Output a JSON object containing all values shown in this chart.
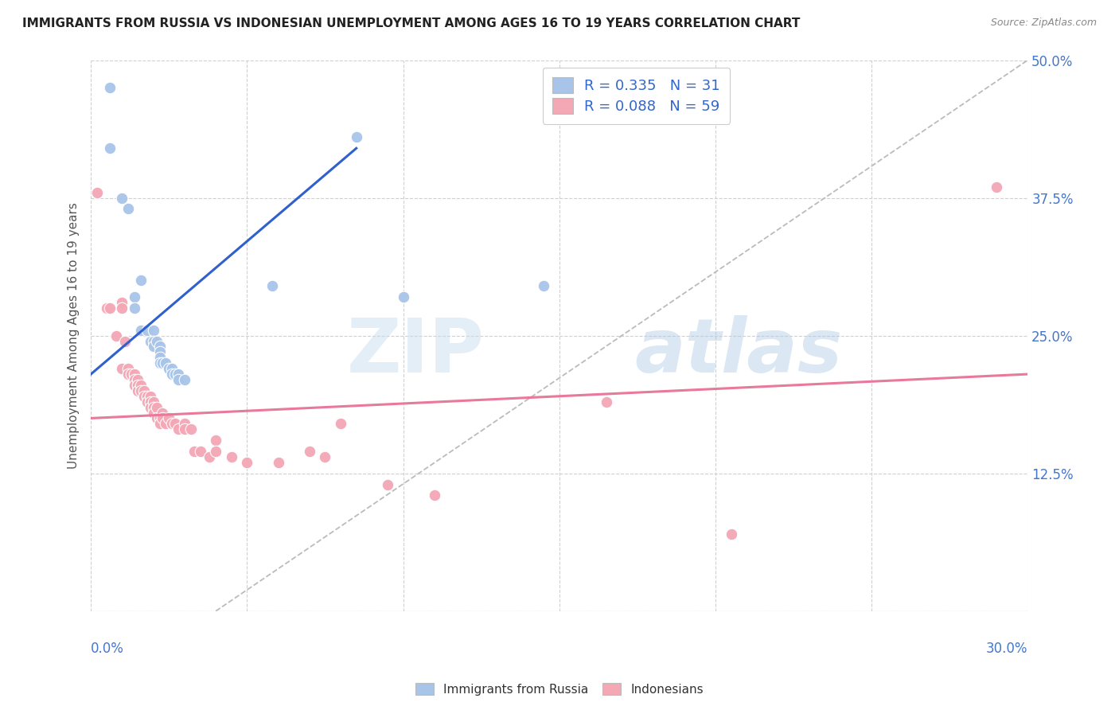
{
  "title": "IMMIGRANTS FROM RUSSIA VS INDONESIAN UNEMPLOYMENT AMONG AGES 16 TO 19 YEARS CORRELATION CHART",
  "source": "Source: ZipAtlas.com",
  "ylabel": "Unemployment Among Ages 16 to 19 years",
  "xlim": [
    0.0,
    0.3
  ],
  "ylim": [
    0.0,
    0.5
  ],
  "y_axis_ticks": [
    0.0,
    0.125,
    0.25,
    0.375,
    0.5
  ],
  "y_axis_labels": [
    "",
    "12.5%",
    "25.0%",
    "37.5%",
    "50.0%"
  ],
  "x_axis_ticks": [
    0.0,
    0.05,
    0.1,
    0.15,
    0.2,
    0.25,
    0.3
  ],
  "russia_R": 0.335,
  "russia_N": 31,
  "indonesia_R": 0.088,
  "indonesia_N": 59,
  "russia_color": "#a8c4e8",
  "indonesia_color": "#f4a7b5",
  "russia_line_color": "#3060cc",
  "indonesia_line_color": "#e8799a",
  "dashed_line_color": "#bbbbbb",
  "legend_color": "#3366cc",
  "russia_scatter": [
    [
      0.006,
      0.475
    ],
    [
      0.006,
      0.42
    ],
    [
      0.01,
      0.375
    ],
    [
      0.012,
      0.365
    ],
    [
      0.014,
      0.285
    ],
    [
      0.014,
      0.275
    ],
    [
      0.016,
      0.3
    ],
    [
      0.016,
      0.255
    ],
    [
      0.018,
      0.255
    ],
    [
      0.019,
      0.245
    ],
    [
      0.02,
      0.255
    ],
    [
      0.02,
      0.245
    ],
    [
      0.02,
      0.24
    ],
    [
      0.021,
      0.245
    ],
    [
      0.022,
      0.24
    ],
    [
      0.022,
      0.235
    ],
    [
      0.022,
      0.23
    ],
    [
      0.022,
      0.225
    ],
    [
      0.023,
      0.225
    ],
    [
      0.024,
      0.225
    ],
    [
      0.025,
      0.22
    ],
    [
      0.026,
      0.22
    ],
    [
      0.026,
      0.215
    ],
    [
      0.027,
      0.215
    ],
    [
      0.028,
      0.215
    ],
    [
      0.028,
      0.21
    ],
    [
      0.03,
      0.21
    ],
    [
      0.058,
      0.295
    ],
    [
      0.085,
      0.43
    ],
    [
      0.1,
      0.285
    ],
    [
      0.145,
      0.295
    ]
  ],
  "indonesia_scatter": [
    [
      0.002,
      0.38
    ],
    [
      0.005,
      0.275
    ],
    [
      0.006,
      0.275
    ],
    [
      0.008,
      0.25
    ],
    [
      0.01,
      0.28
    ],
    [
      0.01,
      0.275
    ],
    [
      0.01,
      0.22
    ],
    [
      0.011,
      0.245
    ],
    [
      0.012,
      0.22
    ],
    [
      0.012,
      0.215
    ],
    [
      0.013,
      0.215
    ],
    [
      0.014,
      0.215
    ],
    [
      0.014,
      0.21
    ],
    [
      0.014,
      0.205
    ],
    [
      0.015,
      0.21
    ],
    [
      0.015,
      0.205
    ],
    [
      0.015,
      0.2
    ],
    [
      0.016,
      0.205
    ],
    [
      0.016,
      0.2
    ],
    [
      0.017,
      0.2
    ],
    [
      0.017,
      0.195
    ],
    [
      0.018,
      0.195
    ],
    [
      0.018,
      0.19
    ],
    [
      0.019,
      0.195
    ],
    [
      0.019,
      0.19
    ],
    [
      0.019,
      0.185
    ],
    [
      0.02,
      0.19
    ],
    [
      0.02,
      0.185
    ],
    [
      0.02,
      0.18
    ],
    [
      0.021,
      0.185
    ],
    [
      0.021,
      0.175
    ],
    [
      0.022,
      0.175
    ],
    [
      0.022,
      0.17
    ],
    [
      0.023,
      0.18
    ],
    [
      0.023,
      0.175
    ],
    [
      0.024,
      0.17
    ],
    [
      0.025,
      0.175
    ],
    [
      0.026,
      0.17
    ],
    [
      0.027,
      0.17
    ],
    [
      0.028,
      0.165
    ],
    [
      0.03,
      0.17
    ],
    [
      0.03,
      0.165
    ],
    [
      0.032,
      0.165
    ],
    [
      0.033,
      0.145
    ],
    [
      0.035,
      0.145
    ],
    [
      0.038,
      0.14
    ],
    [
      0.04,
      0.155
    ],
    [
      0.04,
      0.145
    ],
    [
      0.045,
      0.14
    ],
    [
      0.05,
      0.135
    ],
    [
      0.06,
      0.135
    ],
    [
      0.07,
      0.145
    ],
    [
      0.075,
      0.14
    ],
    [
      0.08,
      0.17
    ],
    [
      0.095,
      0.115
    ],
    [
      0.11,
      0.105
    ],
    [
      0.165,
      0.19
    ],
    [
      0.205,
      0.07
    ],
    [
      0.29,
      0.385
    ]
  ],
  "russia_line": {
    "x0": 0.0,
    "y0": 0.215,
    "x1": 0.085,
    "y1": 0.42
  },
  "indonesia_line": {
    "x0": 0.0,
    "y0": 0.175,
    "x1": 0.3,
    "y1": 0.215
  },
  "dashed_line": {
    "x0": 0.04,
    "y0": 0.0,
    "x1": 0.3,
    "y1": 0.5
  },
  "watermark_zip": "ZIP",
  "watermark_atlas": "atlas",
  "background_color": "#ffffff",
  "grid_color": "#d0d0d0"
}
